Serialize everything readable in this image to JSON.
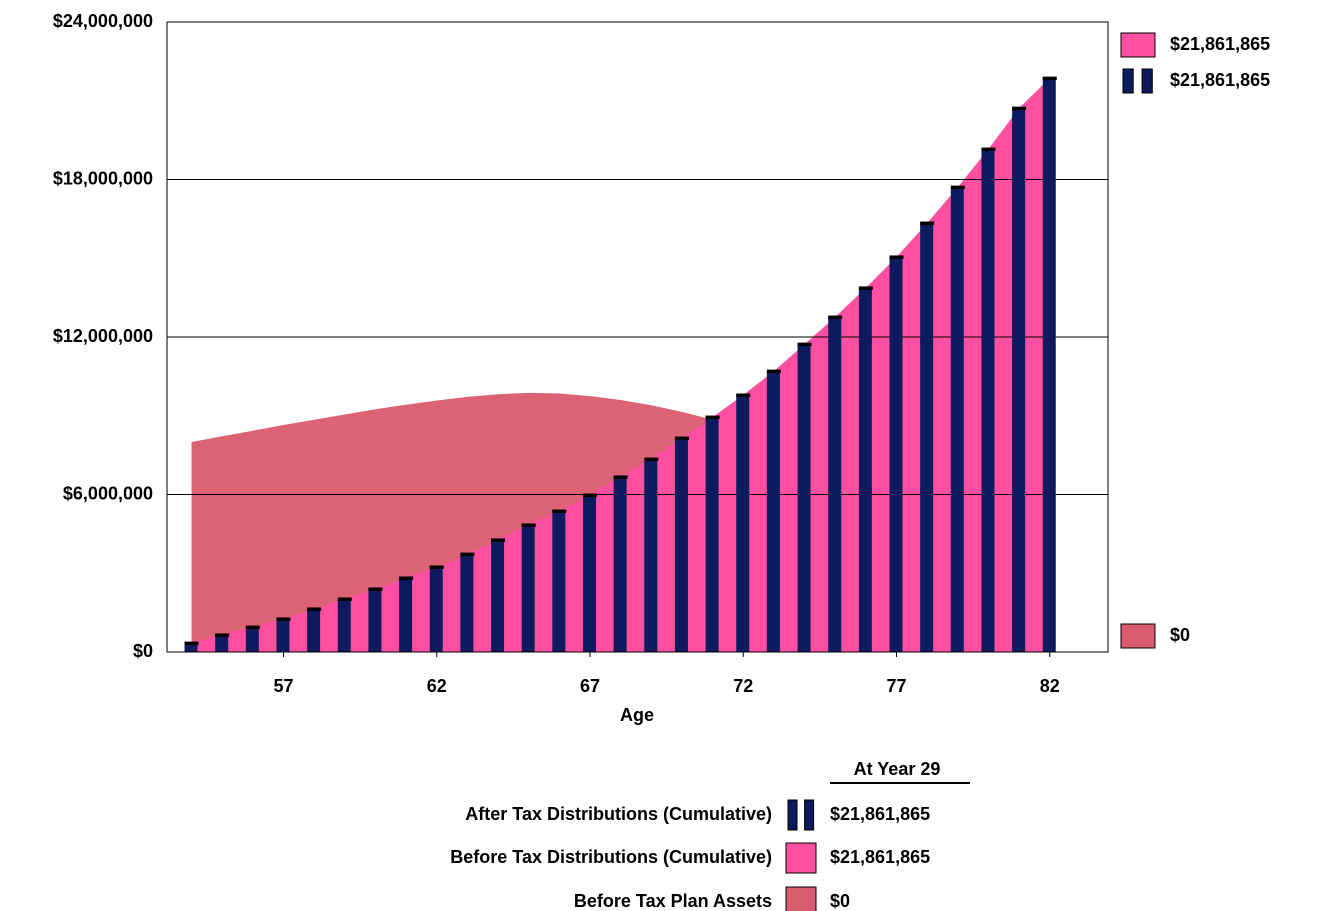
{
  "chart_data": {
    "type": "bar-area",
    "x_label": "Age",
    "x": [
      54,
      55,
      56,
      57,
      58,
      59,
      60,
      61,
      62,
      63,
      64,
      65,
      66,
      67,
      68,
      69,
      70,
      71,
      72,
      73,
      74,
      75,
      76,
      77,
      78,
      79,
      80,
      81,
      82
    ],
    "xlim": [
      53.2,
      83.9
    ],
    "xticks": [
      57,
      62,
      67,
      72,
      77,
      82
    ],
    "ylim": [
      0,
      24000000
    ],
    "yticks": [
      {
        "value": 0,
        "label": "$0"
      },
      {
        "value": 6000000,
        "label": "$6,000,000"
      },
      {
        "value": 12000000,
        "label": "$12,000,000"
      },
      {
        "value": 18000000,
        "label": "$18,000,000"
      },
      {
        "value": 24000000,
        "label": "$24,000,000"
      }
    ],
    "grid": true,
    "legend_title": "At Year 29",
    "series": [
      {
        "name": "After Tax Distributions (Cumulative)",
        "color": "#0d1a5e",
        "kind": "bar",
        "value_label": "$21,861,865",
        "values": [
          340000,
          650000,
          950000,
          1260000,
          1640000,
          2020000,
          2400000,
          2820000,
          3240000,
          3730000,
          4270000,
          4840000,
          5370000,
          5980000,
          6670000,
          7350000,
          8150000,
          8950000,
          9790000,
          10700000,
          11730000,
          12760000,
          13870000,
          15050000,
          16340000,
          17710000,
          19160000,
          20720000,
          21861865
        ]
      },
      {
        "name": "Before Tax Distributions (Cumulative)",
        "color": "#ff4fa0",
        "kind": "area",
        "value_label": "$21,861,865",
        "values": [
          340000,
          650000,
          950000,
          1260000,
          1640000,
          2020000,
          2400000,
          2820000,
          3240000,
          3730000,
          4270000,
          4840000,
          5370000,
          5980000,
          6670000,
          7350000,
          8150000,
          8950000,
          9790000,
          10700000,
          11730000,
          12760000,
          13870000,
          15050000,
          16340000,
          17710000,
          19160000,
          20720000,
          21861865
        ]
      },
      {
        "name": "Before Tax Plan Assets",
        "color": "#d95b6e",
        "kind": "area",
        "value_label": "$0",
        "values": [
          8000000,
          8220000,
          8430000,
          8650000,
          8850000,
          9050000,
          9250000,
          9420000,
          9580000,
          9720000,
          9820000,
          9870000,
          9850000,
          9750000,
          9600000,
          9400000,
          9150000,
          8850000,
          8450000,
          7950000,
          7300000,
          6550000,
          5600000,
          4600000,
          3500000,
          2300000,
          1100000,
          0,
          0
        ]
      }
    ]
  }
}
